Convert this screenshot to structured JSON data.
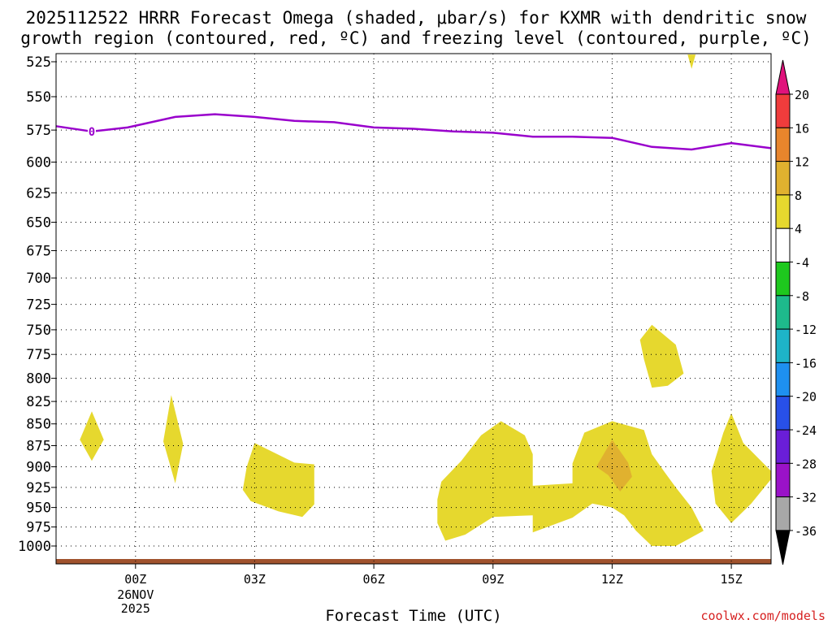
{
  "title_lines": [
    "2025112522 HRRR Forecast Omega (shaded, μbar/s) for KXMR with dendritic snow",
    "growth region (contoured, red, ºC) and freezing level (contoured, purple, ºC)"
  ],
  "credit": "coolwx.com/models",
  "chart_data": {
    "type": "time-height cross section",
    "title": "2025112522 HRRR Forecast Omega (shaded, μbar/s) for KXMR with dendritic snow growth region (contoured, red, ºC) and freezing level (contoured, purple, ºC)",
    "xlabel": "Forecast Time (UTC)",
    "ylabel": "",
    "x_range_hours": [
      -2.0,
      16.0
    ],
    "x_ticks": [
      {
        "hour": 0,
        "label": "00Z",
        "sublabels": [
          "26NOV",
          "2025"
        ]
      },
      {
        "hour": 3,
        "label": "03Z"
      },
      {
        "hour": 6,
        "label": "06Z"
      },
      {
        "hour": 9,
        "label": "09Z"
      },
      {
        "hour": 12,
        "label": "12Z"
      },
      {
        "hour": 15,
        "label": "15Z"
      }
    ],
    "y_ticks": [
      525,
      550,
      575,
      600,
      625,
      650,
      675,
      700,
      725,
      750,
      775,
      800,
      825,
      850,
      875,
      900,
      925,
      950,
      975,
      1000
    ],
    "y_range_hpa": [
      520,
      1012
    ],
    "grid": "dotted",
    "freezing_level": {
      "label": "0",
      "color": "#9900cc",
      "points": [
        [
          -2.0,
          572
        ],
        [
          -1.1,
          576
        ],
        [
          -0.2,
          573
        ],
        [
          1.0,
          565
        ],
        [
          2.0,
          563
        ],
        [
          3.0,
          565
        ],
        [
          4.0,
          568
        ],
        [
          5.0,
          569
        ],
        [
          6.0,
          573
        ],
        [
          7.0,
          574
        ],
        [
          8.0,
          576
        ],
        [
          9.0,
          577
        ],
        [
          10.0,
          580
        ],
        [
          11.0,
          580
        ],
        [
          12.0,
          581
        ],
        [
          13.0,
          588
        ],
        [
          14.0,
          590
        ],
        [
          15.0,
          585
        ],
        [
          16.0,
          589
        ]
      ]
    },
    "omega_regions": [
      {
        "level": "4 to 8",
        "color": "#e6d82e",
        "points": [
          [
            -1.1,
            836
          ],
          [
            -0.8,
            868
          ],
          [
            -1.1,
            893
          ],
          [
            -1.4,
            868
          ]
        ]
      },
      {
        "level": "4 to 8",
        "color": "#e6d82e",
        "points": [
          [
            0.9,
            818
          ],
          [
            1.2,
            873
          ],
          [
            1.0,
            920
          ],
          [
            0.7,
            870
          ]
        ]
      },
      {
        "level": "4 to 8",
        "color": "#e6d82e",
        "points": [
          [
            3.0,
            872
          ],
          [
            4.0,
            895
          ],
          [
            4.5,
            897
          ],
          [
            4.5,
            946
          ],
          [
            4.2,
            962
          ],
          [
            3.6,
            955
          ],
          [
            2.9,
            942
          ],
          [
            2.7,
            928
          ],
          [
            2.8,
            900
          ]
        ]
      },
      {
        "level": "4 to 8",
        "color": "#e6d82e",
        "points": [
          [
            7.7,
            918
          ],
          [
            8.2,
            893
          ],
          [
            8.7,
            863
          ],
          [
            9.2,
            847
          ],
          [
            9.8,
            863
          ],
          [
            10.0,
            885
          ],
          [
            10.0,
            923
          ],
          [
            11.0,
            920
          ],
          [
            11.0,
            896
          ],
          [
            11.3,
            860
          ],
          [
            12.0,
            847
          ],
          [
            12.8,
            857
          ],
          [
            13.0,
            885
          ],
          [
            13.3,
            905
          ],
          [
            13.6,
            925
          ],
          [
            14.0,
            950
          ],
          [
            14.3,
            980
          ],
          [
            13.6,
            1000
          ],
          [
            13.0,
            1000
          ],
          [
            12.6,
            980
          ],
          [
            12.3,
            960
          ],
          [
            12.0,
            950
          ],
          [
            11.5,
            945
          ],
          [
            11.0,
            963
          ],
          [
            10.0,
            982
          ],
          [
            10.0,
            960
          ],
          [
            9.0,
            962
          ],
          [
            8.3,
            985
          ],
          [
            7.8,
            993
          ],
          [
            7.6,
            970
          ],
          [
            7.6,
            940
          ]
        ]
      },
      {
        "level": "8 to 12",
        "color": "#e0b12f",
        "points": [
          [
            12.0,
            868
          ],
          [
            12.4,
            895
          ],
          [
            12.5,
            912
          ],
          [
            12.2,
            930
          ],
          [
            11.9,
            910
          ],
          [
            11.6,
            900
          ]
        ]
      },
      {
        "level": "4 to 8",
        "color": "#e6d82e",
        "points": [
          [
            15.0,
            838
          ],
          [
            15.3,
            872
          ],
          [
            16.0,
            905
          ],
          [
            16.0,
            915
          ],
          [
            15.5,
            945
          ],
          [
            15.0,
            970
          ],
          [
            14.6,
            945
          ],
          [
            14.5,
            905
          ],
          [
            14.8,
            860
          ]
        ]
      },
      {
        "level": "4 to 8",
        "color": "#e6d82e",
        "points": [
          [
            13.0,
            745
          ],
          [
            13.6,
            765
          ],
          [
            13.8,
            795
          ],
          [
            13.4,
            808
          ],
          [
            13.0,
            810
          ],
          [
            12.8,
            780
          ],
          [
            12.7,
            760
          ]
        ]
      },
      {
        "level": "4 to 8",
        "color": "#e6d82e",
        "points": [
          [
            13.9,
            520
          ],
          [
            14.1,
            520
          ],
          [
            14.0,
            530
          ]
        ]
      }
    ],
    "ground_color": "#a0522d",
    "colorbar": {
      "labels": [
        "20",
        "16",
        "12",
        "8",
        "4",
        "-4",
        "-8",
        "-12",
        "-16",
        "-20",
        "-24",
        "-28",
        "-32",
        "-36"
      ],
      "top_triangle_color": "#e0127c",
      "bottom_triangle_color": "#000000",
      "bins": [
        {
          "range": "16 to 20",
          "color": "#f03c3c"
        },
        {
          "range": "12 to 16",
          "color": "#e8852c"
        },
        {
          "range": "8 to 12",
          "color": "#e0b12f"
        },
        {
          "range": "4 to 8",
          "color": "#e6d82e"
        },
        {
          "range": "-4 to 4",
          "color": "#ffffff"
        },
        {
          "range": "-8 to -4",
          "color": "#1ec81e"
        },
        {
          "range": "-12 to -8",
          "color": "#1eba8c"
        },
        {
          "range": "-16 to -12",
          "color": "#1eb4c8"
        },
        {
          "range": "-20 to -16",
          "color": "#1e90f0"
        },
        {
          "range": "-24 to -20",
          "color": "#2850e8"
        },
        {
          "range": "-28 to -24",
          "color": "#6a1ed8"
        },
        {
          "range": "-32 to -28",
          "color": "#9a12c8"
        },
        {
          "range": "-36 to -32",
          "color": "#a8a8a8"
        }
      ]
    }
  }
}
